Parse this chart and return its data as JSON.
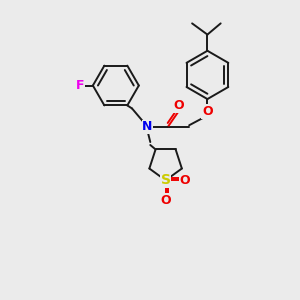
{
  "background_color": "#ebebeb",
  "bond_color": "#1a1a1a",
  "N_color": "#0000ee",
  "O_color": "#ee0000",
  "F_color": "#ee00ee",
  "S_color": "#cccc00",
  "line_width": 1.4,
  "figsize": [
    3.0,
    3.0
  ],
  "dpi": 100,
  "xlim": [
    0,
    10
  ],
  "ylim": [
    0,
    10
  ]
}
